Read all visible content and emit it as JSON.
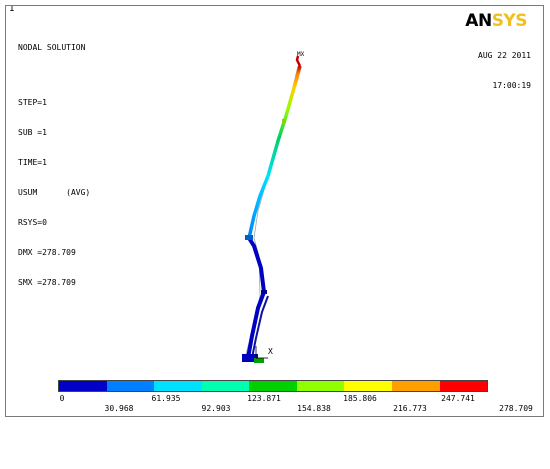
{
  "window": {
    "number": "1"
  },
  "info_lines": [
    "NODAL SOLUTION",
    "STEP=1",
    "SUB =1",
    "TIME=1",
    "USUM      (AVG)",
    "RSYS=0",
    "DMX =278.709",
    "SMX =278.709"
  ],
  "logo": {
    "part1": "AN",
    "part2": "SYS"
  },
  "date": "AUG 22 2011",
  "time": "17:00:19",
  "labels": {
    "mx": "MX",
    "axis_x": "X"
  },
  "legend": {
    "colors": [
      "#0000c8",
      "#0080ff",
      "#00e0ff",
      "#00ffb0",
      "#00d000",
      "#90ff00",
      "#ffff00",
      "#ffa000",
      "#ff0000"
    ],
    "top_labels": [
      "0",
      "61.935",
      "123.871",
      "185.806",
      "247.741"
    ],
    "bottom_labels": [
      "30.968",
      "92.903",
      "154.838",
      "216.773",
      "278.709"
    ]
  }
}
